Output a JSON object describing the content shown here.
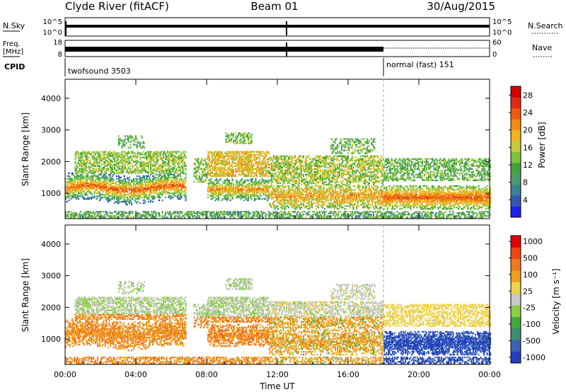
{
  "header": {
    "station": "Clyde River (fitACF)",
    "beam": "Beam 01",
    "date": "30/Aug/2015"
  },
  "top_panels": {
    "nsky_label": "N.Sky",
    "nsky_ticks": [
      "10^5",
      "10^0"
    ],
    "nsearch_label": "N.Search",
    "nsearch_ticks": [
      "10^5",
      "10^0"
    ],
    "freq_label": "Freq.",
    "freq_unit": "[MHz]",
    "freq_ticks": [
      "18",
      "8"
    ],
    "nave_label": "Nave",
    "nave_ticks": [
      "60",
      "0"
    ],
    "cpid_label": "CPID",
    "cpid_segments": [
      {
        "name": "twofsound",
        "id": "3503",
        "start_hour": 0,
        "end_hour": 18
      },
      {
        "name": "normal (fast)",
        "id": "151",
        "start_hour": 18,
        "end_hour": 24
      }
    ]
  },
  "chart_data": [
    {
      "type": "heatmap",
      "title": "",
      "ylabel": "Slant Range [km]",
      "xlabel": "",
      "xlim": [
        0,
        24
      ],
      "ylim": [
        200,
        4600
      ],
      "yticks": [
        "1000",
        "2000",
        "3000",
        "4000"
      ],
      "xticks": [
        "00:00",
        "04:00",
        "08:00",
        "12:00",
        "16:00",
        "20:00",
        "00:00"
      ],
      "colorbar": {
        "label": "Power [dB]",
        "ticks": [
          "28",
          "24",
          "20",
          "16",
          "12",
          "8",
          "4"
        ],
        "range": [
          0,
          30
        ],
        "colors": [
          "#1e1ef0",
          "#2f57b4",
          "#3c7f98",
          "#4c9a6c",
          "#3fa53a",
          "#7cc23c",
          "#c8c83a",
          "#f0b41e",
          "#f08c14",
          "#f05a0a",
          "#e02a14",
          "#d60000"
        ]
      }
    },
    {
      "type": "heatmap",
      "title": "",
      "ylabel": "Slant Range [km]",
      "xlabel": "Time UT",
      "xlim": [
        0,
        24
      ],
      "ylim": [
        200,
        4600
      ],
      "yticks": [
        "1000",
        "2000",
        "3000",
        "4000"
      ],
      "xticks": [
        "00:00",
        "04:00",
        "08:00",
        "12:00",
        "16:00",
        "20:00",
        "00:00"
      ],
      "colorbar": {
        "label": "Velocity [m s⁻¹]",
        "ticks": [
          "1000",
          "500",
          "100",
          "25",
          "-25",
          "-100",
          "-500",
          "-1000"
        ],
        "range": [
          -1000,
          1000
        ],
        "colors": [
          "#2040c0",
          "#3a62b4",
          "#3c8c7c",
          "#3faa3a",
          "#8ccc46",
          "#c8c8c8",
          "#f0d246",
          "#f0a01e",
          "#f0781e",
          "#f04614",
          "#e00000"
        ]
      }
    }
  ]
}
